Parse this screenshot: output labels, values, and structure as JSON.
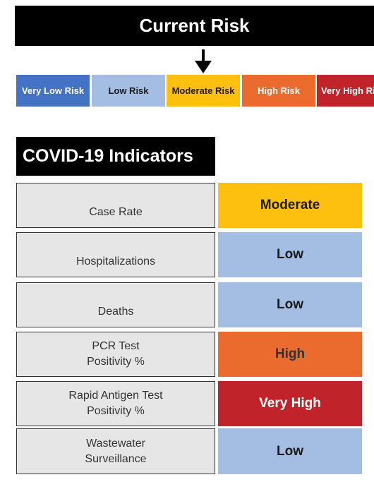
{
  "header": {
    "title": "Current Risk",
    "pointer_icon": "down-arrow-icon"
  },
  "risk_scale": [
    {
      "label": "Very Low Risk",
      "color": "#4472c4",
      "text_color": "#ffffff"
    },
    {
      "label": "Low Risk",
      "color": "#a4bde3",
      "text_color": "#1a1a1a"
    },
    {
      "label": "Moderate Risk",
      "color": "#fec00f",
      "text_color": "#1a1a1a"
    },
    {
      "label": "High Risk",
      "color": "#eb6a2e",
      "text_color": "#ffffff"
    },
    {
      "label": "Very High Risk",
      "color": "#c0232a",
      "text_color": "#ffffff"
    }
  ],
  "current_level": "Moderate Risk",
  "indicators": {
    "title": "COVID-19 Indicators",
    "rows": [
      {
        "label": "Case Rate",
        "level": "Moderate",
        "color": "#fec00f",
        "text_color": "#1a1a1a"
      },
      {
        "label": "Hospitalizations",
        "level": "Low",
        "color": "#a4bde3",
        "text_color": "#1a1a1a"
      },
      {
        "label": "Deaths",
        "level": "Low",
        "color": "#a4bde3",
        "text_color": "#1a1a1a"
      },
      {
        "label": "PCR Test\nPositivity %",
        "level": "High",
        "color": "#eb6a2e",
        "text_color": "#333333"
      },
      {
        "label": "Rapid Antigen Test\nPositivity %",
        "level": "Very High",
        "color": "#c0232a",
        "text_color": "#ffffff"
      },
      {
        "label": "Wastewater\nSurveillance",
        "level": "Low",
        "color": "#a4bde3",
        "text_color": "#1a1a1a"
      }
    ]
  }
}
